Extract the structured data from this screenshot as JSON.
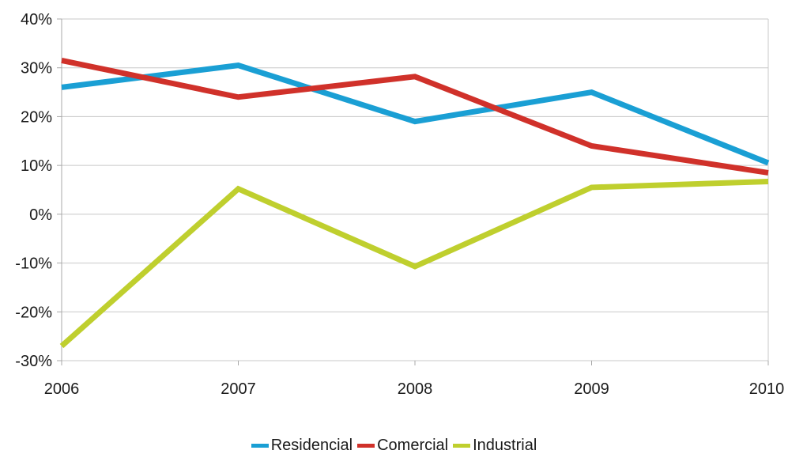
{
  "chart_data": {
    "type": "line",
    "categories": [
      "2006",
      "2007",
      "2008",
      "2009",
      "2010"
    ],
    "series": [
      {
        "name": "Residencial",
        "color": "#1a9fd4",
        "values": [
          26,
          30.5,
          19,
          25,
          10.5
        ]
      },
      {
        "name": "Comercial",
        "color": "#d0312a",
        "values": [
          31.5,
          24,
          28.2,
          14,
          8.5
        ]
      },
      {
        "name": "Industrial",
        "color": "#bfcf2e",
        "values": [
          -27,
          5.2,
          -10.7,
          5.5,
          6.7
        ]
      }
    ],
    "y_ticks": [
      "40%",
      "30%",
      "20%",
      "10%",
      "0%",
      "-10%",
      "-20%",
      "-30%"
    ],
    "ylim": [
      -30,
      40
    ],
    "grid": true,
    "legend_position": "bottom",
    "title": "",
    "xlabel": "",
    "ylabel": ""
  }
}
